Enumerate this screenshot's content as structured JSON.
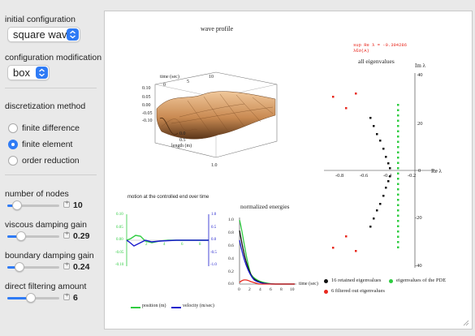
{
  "controls": {
    "initial_config_label": "initial configuration",
    "initial_config_value": "square wav",
    "config_mod_label": "configuration modification",
    "config_mod_value": "box",
    "discretization_label": "discretization method",
    "methods": [
      "finite difference",
      "finite element",
      "order reduction"
    ],
    "selected_method": "finite element",
    "sliders": [
      {
        "label": "number of nodes",
        "value": "10",
        "fraction": 0.12
      },
      {
        "label": "viscous damping gain",
        "value": "0.29",
        "fraction": 0.22
      },
      {
        "label": "boundary damping gain",
        "value": "0.24",
        "fraction": 0.18
      },
      {
        "label": "direct filtering amount",
        "value": "6",
        "fraction": 0.45
      }
    ]
  },
  "colors": {
    "accent": "#2f7bf5",
    "green": "#2ecc40",
    "blue": "#1a1acd",
    "red": "#e8281e"
  },
  "wave_profile": {
    "title": "wave profile",
    "time_label": "time (sec)",
    "length_label": "length (m)",
    "z_ticks": [
      "0.10",
      "0.05",
      "0.00",
      "-0.05",
      "-0.10"
    ],
    "time_ticks": [
      "0",
      "5",
      "10"
    ],
    "length_ticks": [
      "0.0",
      "0.5",
      "1.0"
    ]
  },
  "eigen": {
    "title": "all eigenvalues",
    "top_annotation": "sup   Re λ = -0.394286",
    "top_annotation2": "λ∈σ(A)",
    "im_label": "Im λ",
    "re_label": "Re λ",
    "y_ticks": [
      "40",
      "20",
      "0",
      "-20",
      "-40"
    ],
    "x_ticks": [
      "-0.8",
      "-0.6",
      "-0.4",
      "-0.2"
    ],
    "legend": [
      "16 retained eigenvalues",
      "eigenvalues of the PDE",
      "6 filtered out eigenvalues"
    ]
  },
  "motion": {
    "title": "motion at the controlled end over time",
    "left_ticks": [
      "0.10",
      "0.05",
      "0.00",
      "-0.05",
      "-0.10"
    ],
    "right_ticks": [
      "1.0",
      "0.5",
      "0.0",
      "-0.5",
      "-1.0"
    ],
    "x_ticks": [
      "2",
      "4",
      "6",
      "8"
    ],
    "legend": [
      "position (m)",
      "velocity (m/sec)"
    ]
  },
  "energies": {
    "title": "normalized energies",
    "y_ticks": [
      "1.0",
      "0.8",
      "0.6",
      "0.4",
      "0.2",
      "0.0"
    ],
    "x_ticks": [
      "0",
      "2",
      "4",
      "6",
      "8",
      "10"
    ],
    "x_label": "time (sec)"
  }
}
